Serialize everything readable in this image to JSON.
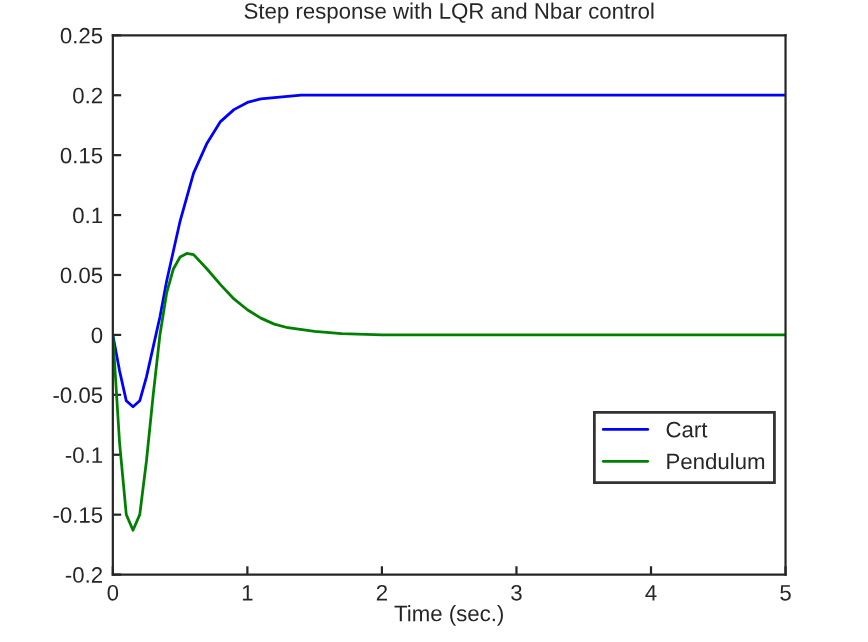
{
  "chart_data": {
    "type": "line",
    "title": "Step response with LQR and Nbar control",
    "xlabel": "Time (sec.)",
    "xlim": [
      0,
      5
    ],
    "xticks": [
      0,
      1,
      2,
      3,
      4,
      5
    ],
    "ylim": [
      -0.2,
      0.25
    ],
    "yticks": [
      -0.2,
      -0.15,
      -0.1,
      -0.05,
      0,
      0.05,
      0.1,
      0.15,
      0.2,
      0.25
    ],
    "legend": "bottom right",
    "grid": false,
    "series": [
      {
        "name": "Cart",
        "color": "#0000ff",
        "x": [
          0,
          0.05,
          0.1,
          0.15,
          0.2,
          0.25,
          0.3,
          0.35,
          0.4,
          0.45,
          0.5,
          0.55,
          0.6,
          0.7,
          0.8,
          0.9,
          1.0,
          1.1,
          1.2,
          1.4,
          1.6,
          2.0,
          3.0,
          4.0,
          5.0
        ],
        "values": [
          0,
          -0.03,
          -0.055,
          -0.06,
          -0.055,
          -0.035,
          -0.01,
          0.015,
          0.045,
          0.07,
          0.095,
          0.115,
          0.135,
          0.16,
          0.178,
          0.188,
          0.194,
          0.197,
          0.198,
          0.2,
          0.2,
          0.2,
          0.2,
          0.2,
          0.2
        ]
      },
      {
        "name": "Pendulum",
        "color": "#008000",
        "x": [
          0,
          0.05,
          0.1,
          0.15,
          0.2,
          0.25,
          0.3,
          0.35,
          0.4,
          0.45,
          0.5,
          0.55,
          0.6,
          0.7,
          0.8,
          0.9,
          1.0,
          1.1,
          1.2,
          1.3,
          1.5,
          1.7,
          2.0,
          3.0,
          4.0,
          5.0
        ],
        "values": [
          0,
          -0.09,
          -0.15,
          -0.163,
          -0.15,
          -0.105,
          -0.05,
          0.0,
          0.035,
          0.055,
          0.065,
          0.068,
          0.067,
          0.055,
          0.042,
          0.03,
          0.021,
          0.014,
          0.009,
          0.006,
          0.003,
          0.001,
          0,
          0,
          0,
          0
        ]
      }
    ]
  }
}
